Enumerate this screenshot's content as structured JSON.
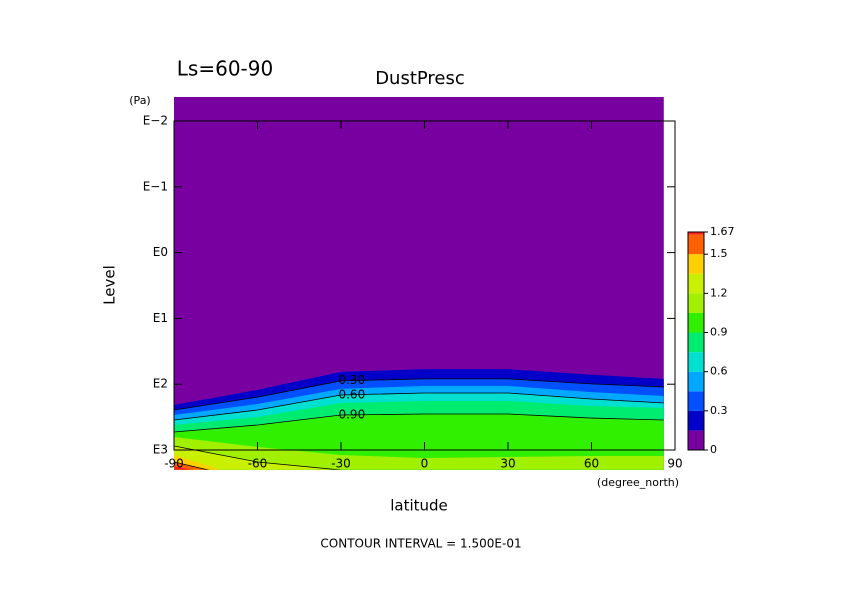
{
  "chart_data": {
    "type": "filled-contour",
    "title": "DustPresc",
    "subtitle": "Ls=60-90",
    "y_unit": "(Pa)",
    "ylabel": "Level",
    "xlabel": "latitude",
    "x_unit": "(degree_north)",
    "footnote": "CONTOUR INTERVAL = 1.500E-01",
    "xlim": [
      -90,
      90
    ],
    "xticks": [
      -90,
      -60,
      -30,
      0,
      30,
      60,
      90
    ],
    "log_y": true,
    "ylim": [
      1000,
      0.01
    ],
    "yticks": [
      {
        "value": 1000,
        "label": "E3"
      },
      {
        "value": 100,
        "label": "E2"
      },
      {
        "value": 10,
        "label": "E1"
      },
      {
        "value": 1,
        "label": "E0"
      },
      {
        "value": 0.1,
        "label": "E−1"
      },
      {
        "value": 0.01,
        "label": "E−2"
      }
    ],
    "field_ylim": [
      2000,
      0.0043
    ],
    "lat": [
      -90,
      -60,
      -30,
      0,
      30,
      60,
      86
    ],
    "levels": [
      0.15,
      0.3,
      0.45,
      0.6,
      0.75,
      0.9,
      1.05,
      1.2,
      1.35,
      1.5,
      1.65
    ],
    "value_labels": [
      null,
      "0.30",
      null,
      "0.60",
      null,
      "0.90",
      null,
      null,
      null,
      null,
      null
    ],
    "boundaries": [
      [
        207,
        122,
        65,
        59,
        59,
        72,
        83
      ],
      [
        247,
        157,
        89,
        83,
        83,
        99,
        110
      ],
      [
        294,
        200,
        118,
        106,
        106,
        132,
        151
      ],
      [
        350,
        247,
        146,
        136,
        136,
        168,
        193
      ],
      [
        417,
        315,
        193,
        180,
        180,
        214,
        230
      ],
      [
        532,
        417,
        294,
        284,
        284,
        327,
        350
      ],
      [
        634,
        899,
        1191,
        1324,
        1276,
        1233,
        1233
      ],
      [
        869,
        1521,
        2014,
        3000,
        3000,
        3000,
        3000
      ],
      [
        1191,
        3000,
        3000,
        3000,
        3000,
        3000,
        3000
      ],
      [
        1521,
        3000,
        3000,
        3000,
        3000,
        3000,
        3000
      ],
      [
        1778,
        3000,
        3000,
        3000,
        3000,
        3000,
        3000
      ]
    ],
    "contour_line_levels": [
      0.3,
      0.6,
      0.9,
      1.2,
      1.5
    ],
    "colors": [
      "#7800a0",
      "#0000c8",
      "#0050ff",
      "#00a8ff",
      "#00e0d0",
      "#00ec70",
      "#30f000",
      "#a0f000",
      "#c8f000",
      "#ffd000",
      "#ff6000",
      "#ff2020"
    ],
    "colorbar_lim": [
      0,
      1.67
    ],
    "colorbar_ticks": [
      0,
      0.3,
      0.6,
      0.9,
      1.2,
      1.5,
      1.67
    ]
  }
}
